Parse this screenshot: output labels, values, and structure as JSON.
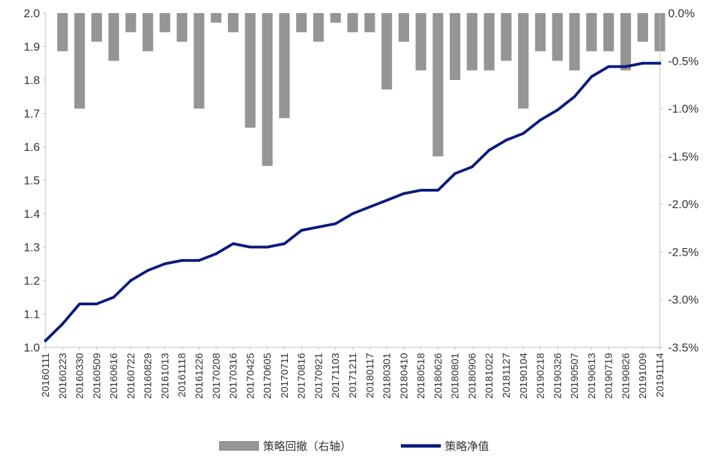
{
  "chart_data": {
    "type": "line",
    "title": "",
    "xlabel": "",
    "ylabel": "",
    "legend_position": "bottom-center",
    "grid": false,
    "y_left": {
      "range": [
        1.0,
        2.0
      ],
      "ticks": [
        "1.0",
        "1.1",
        "1.2",
        "1.3",
        "1.4",
        "1.5",
        "1.6",
        "1.7",
        "1.8",
        "1.9",
        "2.0"
      ],
      "tick_values": [
        1.0,
        1.1,
        1.2,
        1.3,
        1.4,
        1.5,
        1.6,
        1.7,
        1.8,
        1.9,
        2.0
      ]
    },
    "y_right": {
      "range": [
        -3.5,
        0.0
      ],
      "unit": "%",
      "ticks": [
        "0.0%",
        "-0.5%",
        "-1.0%",
        "-1.5%",
        "-2.0%",
        "-2.5%",
        "-3.0%",
        "-3.5%"
      ],
      "tick_values": [
        0.0,
        -0.5,
        -1.0,
        -1.5,
        -2.0,
        -2.5,
        -3.0,
        -3.5
      ]
    },
    "x_tick_labels": [
      "20160111",
      "20160223",
      "20160330",
      "20160509",
      "20160616",
      "20160722",
      "20160829",
      "20161013",
      "20161118",
      "20161226",
      "20170208",
      "20170316",
      "20170425",
      "20170605",
      "20170711",
      "20170816",
      "20170921",
      "20171103",
      "20171211",
      "20180117",
      "20180301",
      "20180410",
      "20180518",
      "20180626",
      "20180801",
      "20180906",
      "20181022",
      "20181127",
      "20190104",
      "20190218",
      "20190326",
      "20190507",
      "20190613",
      "20190719",
      "20190826",
      "20191009",
      "20191114"
    ],
    "series": [
      {
        "name": "策略回撤（右轴）",
        "kind": "area",
        "axis": "right",
        "color": "#959595",
        "x_index": [
          0,
          1,
          2,
          3,
          4,
          5,
          6,
          7,
          8,
          9,
          10,
          11,
          12,
          13,
          14,
          15,
          16,
          17,
          18,
          19,
          20,
          21,
          22,
          23,
          24,
          25,
          26,
          27,
          28,
          29,
          30,
          31,
          32,
          33,
          34,
          35,
          36
        ],
        "values": [
          0.0,
          -0.4,
          -1.0,
          -0.3,
          -0.5,
          -0.2,
          -0.4,
          -0.2,
          -0.3,
          -1.0,
          -0.1,
          -0.2,
          -1.2,
          -1.6,
          -1.1,
          -0.2,
          -0.3,
          -0.1,
          -0.2,
          -0.2,
          -0.8,
          -0.3,
          -0.6,
          -1.5,
          -0.7,
          -0.6,
          -0.6,
          -0.5,
          -1.0,
          -0.4,
          -0.5,
          -0.6,
          -0.4,
          -0.4,
          -0.6,
          -0.3,
          -0.4
        ]
      },
      {
        "name": "策略净值",
        "kind": "line",
        "axis": "left",
        "color": "#0b1a7e",
        "x_index": [
          0,
          1,
          2,
          3,
          4,
          5,
          6,
          7,
          8,
          9,
          10,
          11,
          12,
          13,
          14,
          15,
          16,
          17,
          18,
          19,
          20,
          21,
          22,
          23,
          24,
          25,
          26,
          27,
          28,
          29,
          30,
          31,
          32,
          33,
          34,
          35,
          36
        ],
        "values": [
          1.02,
          1.07,
          1.13,
          1.13,
          1.15,
          1.2,
          1.23,
          1.25,
          1.26,
          1.26,
          1.28,
          1.31,
          1.3,
          1.3,
          1.31,
          1.35,
          1.36,
          1.37,
          1.4,
          1.42,
          1.44,
          1.46,
          1.47,
          1.47,
          1.52,
          1.54,
          1.59,
          1.62,
          1.64,
          1.68,
          1.71,
          1.75,
          1.81,
          1.84,
          1.84,
          1.85,
          1.85
        ]
      }
    ]
  }
}
